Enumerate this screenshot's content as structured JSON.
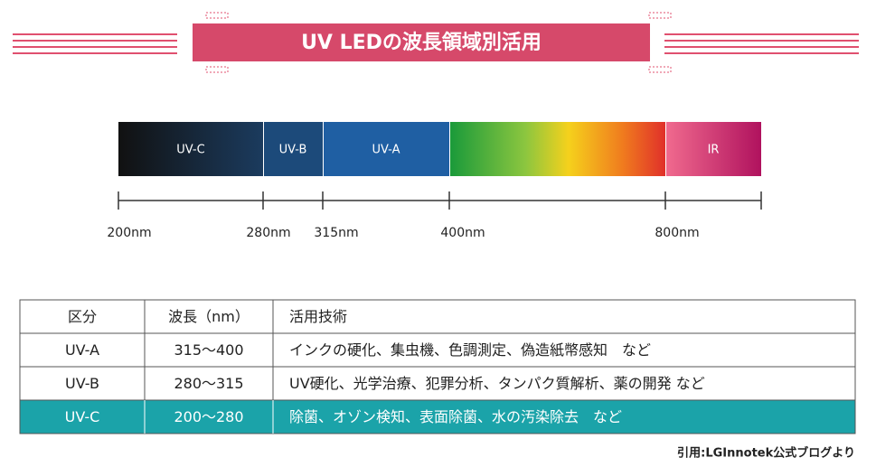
{
  "header": {
    "title": "UV LEDの波長領域別活用"
  },
  "spectrum": {
    "bands": [
      "UV-C",
      "UV-B",
      "UV-A",
      "IR"
    ],
    "ticks": [
      "200nm",
      "280nm",
      "315nm",
      "400nm",
      "800nm"
    ]
  },
  "table": {
    "header": [
      "区分",
      "波長（nm）",
      "活用技術"
    ],
    "rows": [
      [
        "UV-A",
        "315〜400",
        "インクの硬化、集虫機、色調測定、偽造紙幣感知　など"
      ],
      [
        "UV-B",
        "280〜315",
        "UV硬化、光学治療、犯罪分析、タンパク質解析、薬の開発 など"
      ],
      [
        "UV-C",
        "200〜280",
        "除菌、オゾン検知、表面除菌、水の汚染除去　など"
      ]
    ]
  },
  "source": "引用:LGInnotek公式ブログより"
}
